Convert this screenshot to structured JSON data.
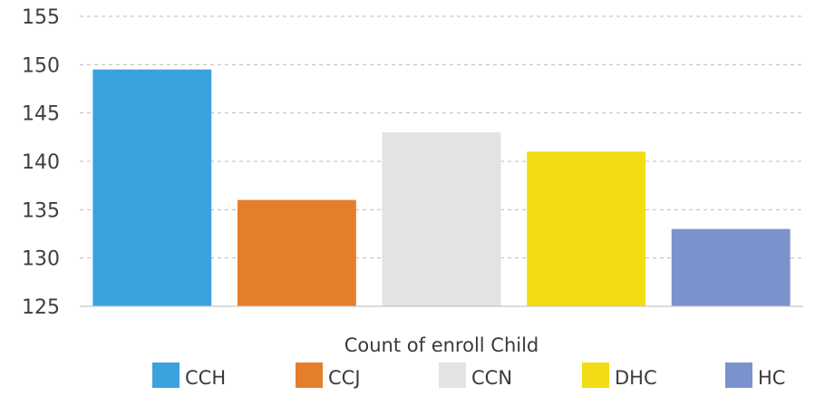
{
  "chart_data": {
    "type": "bar",
    "categories": [
      "CCH",
      "CCJ",
      "CCN",
      "DHC",
      "HC"
    ],
    "values": [
      149.5,
      136,
      143,
      141,
      133
    ],
    "colors": [
      "#3aa3dc",
      "#e57e2b",
      "#e3e3e3",
      "#f2dc14",
      "#7b93cc"
    ],
    "xlabel": "Count of enroll Child",
    "ylabel": "",
    "ylim": [
      125,
      155
    ],
    "yticks": [
      125,
      130,
      135,
      140,
      145,
      150,
      155
    ],
    "grid": true,
    "legend": {
      "position": "bottom",
      "entries": [
        "CCH",
        "CCJ",
        "CCN",
        "DHC",
        "HC"
      ]
    }
  }
}
